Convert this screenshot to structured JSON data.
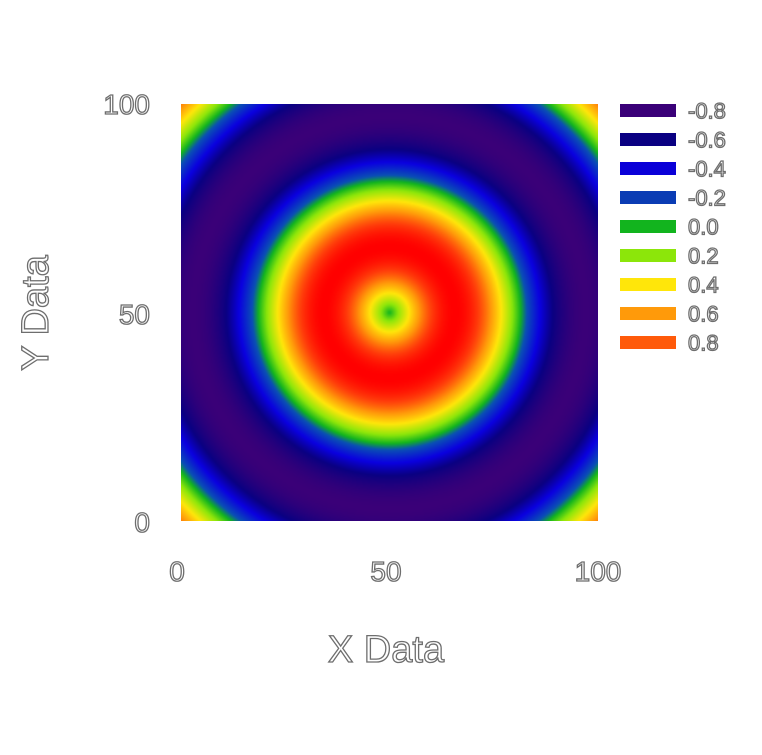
{
  "chart_data": {
    "type": "heatmap",
    "title": "",
    "xlabel": "X Data",
    "ylabel": "Y Data",
    "xlim": [
      0,
      100
    ],
    "ylim": [
      0,
      100
    ],
    "x_ticks": [
      "0",
      "50",
      "100"
    ],
    "y_ticks": [
      "0",
      "50",
      "100"
    ],
    "function": "z = sin(distance from point (50, 50) / 10)",
    "center": [
      50,
      50
    ],
    "wavelength": 62.83,
    "z_range": [
      -1,
      1
    ],
    "grid": false,
    "colorbar_position": "right",
    "legend": [
      {
        "label": "-0.8",
        "color": "#3a0078"
      },
      {
        "label": "-0.6",
        "color": "#0a0082"
      },
      {
        "label": "-0.4",
        "color": "#0a00d8"
      },
      {
        "label": "-0.2",
        "color": "#0a3cb4"
      },
      {
        "label": "0.0",
        "color": "#12b41e"
      },
      {
        "label": "0.2",
        "color": "#8ce60a"
      },
      {
        "label": "0.4",
        "color": "#ffe60a"
      },
      {
        "label": "0.6",
        "color": "#ff9a0a"
      },
      {
        "label": "0.8",
        "color": "#ff5a0a"
      }
    ],
    "color_stops": [
      {
        "z": -1.0,
        "color": "#3a0078"
      },
      {
        "z": -0.7,
        "color": "#0a0082"
      },
      {
        "z": -0.45,
        "color": "#0a00e0"
      },
      {
        "z": -0.15,
        "color": "#0a50b4"
      },
      {
        "z": 0.0,
        "color": "#12b41e"
      },
      {
        "z": 0.2,
        "color": "#8ce60a"
      },
      {
        "z": 0.45,
        "color": "#ffe60a"
      },
      {
        "z": 0.65,
        "color": "#ff9a0a"
      },
      {
        "z": 0.85,
        "color": "#ff3c0a"
      },
      {
        "z": 1.0,
        "color": "#ff0000"
      }
    ]
  }
}
